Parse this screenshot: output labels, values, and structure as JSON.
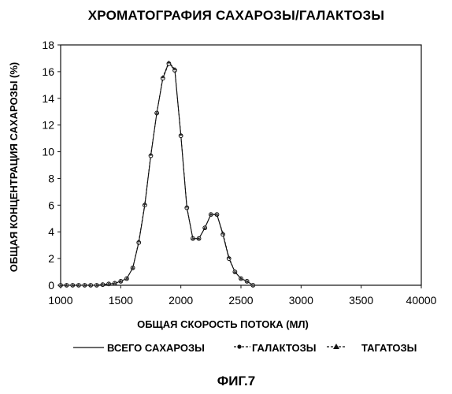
{
  "chart_data": {
    "type": "line",
    "title": "ХРОМАТОГРАФИЯ САХАРОЗЫ/ГАЛАКТОЗЫ",
    "xlabel": "ОБЩАЯ СКОРОСТЬ ПОТОКА (МЛ)",
    "ylabel": "ОБЩАЯ КОНЦЕНТРАЦИЯ САХАРОЗЫ (%)",
    "caption": "ФИГ.7",
    "x_ticks": [
      "1000",
      "1500",
      "2000",
      "2500",
      "3000",
      "3500",
      "40000"
    ],
    "x_tick_values": [
      1000,
      1500,
      2000,
      2500,
      3000,
      3500,
      4000
    ],
    "y_ticks": [
      "0",
      "2",
      "4",
      "6",
      "8",
      "10",
      "12",
      "14",
      "16",
      "18"
    ],
    "y_tick_values": [
      0,
      2,
      4,
      6,
      8,
      10,
      12,
      14,
      16,
      18
    ],
    "xlim": [
      1000,
      4000
    ],
    "ylim": [
      0,
      18
    ],
    "grid": false,
    "legend_position": "bottom",
    "x": [
      1000,
      1050,
      1100,
      1150,
      1200,
      1250,
      1300,
      1350,
      1400,
      1450,
      1500,
      1550,
      1600,
      1650,
      1700,
      1750,
      1800,
      1850,
      1900,
      1950,
      2000,
      2050,
      2100,
      2150,
      2200,
      2250,
      2300,
      2350,
      2400,
      2450,
      2500,
      2550,
      2600
    ],
    "series": [
      {
        "name": "ВСЕГО САХАРОЗЫ",
        "marker": "none",
        "values": [
          0,
          0,
          0,
          0,
          0,
          0,
          0,
          0.05,
          0.1,
          0.15,
          0.3,
          0.5,
          1.3,
          3.2,
          6.0,
          9.7,
          12.9,
          15.5,
          16.7,
          16.1,
          11.2,
          5.8,
          3.5,
          3.5,
          4.3,
          5.3,
          5.3,
          3.8,
          2.0,
          1.0,
          0.5,
          0.3,
          0.0
        ]
      },
      {
        "name": "ГАЛАКТОЗЫ",
        "marker": "circle",
        "values": [
          0,
          0,
          0,
          0,
          0,
          0,
          0,
          0.05,
          0.1,
          0.15,
          0.3,
          0.5,
          1.3,
          3.2,
          6.0,
          9.7,
          12.9,
          15.5,
          16.6,
          16.1,
          11.2,
          5.8,
          3.5,
          3.5,
          4.3,
          5.3,
          5.3,
          3.8,
          2.0,
          1.0,
          0.5,
          0.3,
          0.0
        ]
      },
      {
        "name": "ТАГАТОЗЫ",
        "marker": "triangle",
        "values": [
          0,
          0,
          0,
          0,
          0,
          0,
          0,
          0.05,
          0.1,
          0.15,
          0.3,
          0.5,
          1.3,
          3.3,
          6.1,
          9.8,
          12.9,
          15.6,
          16.7,
          16.2,
          11.3,
          5.9,
          3.5,
          3.5,
          4.3,
          5.3,
          5.3,
          3.9,
          2.1,
          1.0,
          0.5,
          0.3,
          0.0
        ]
      }
    ]
  },
  "legend": {
    "total_label": "ВСЕГО САХАРОЗЫ",
    "galactose_label": "ГАЛАКТОЗЫ",
    "tagatose_label": "ТАГАТОЗЫ"
  }
}
